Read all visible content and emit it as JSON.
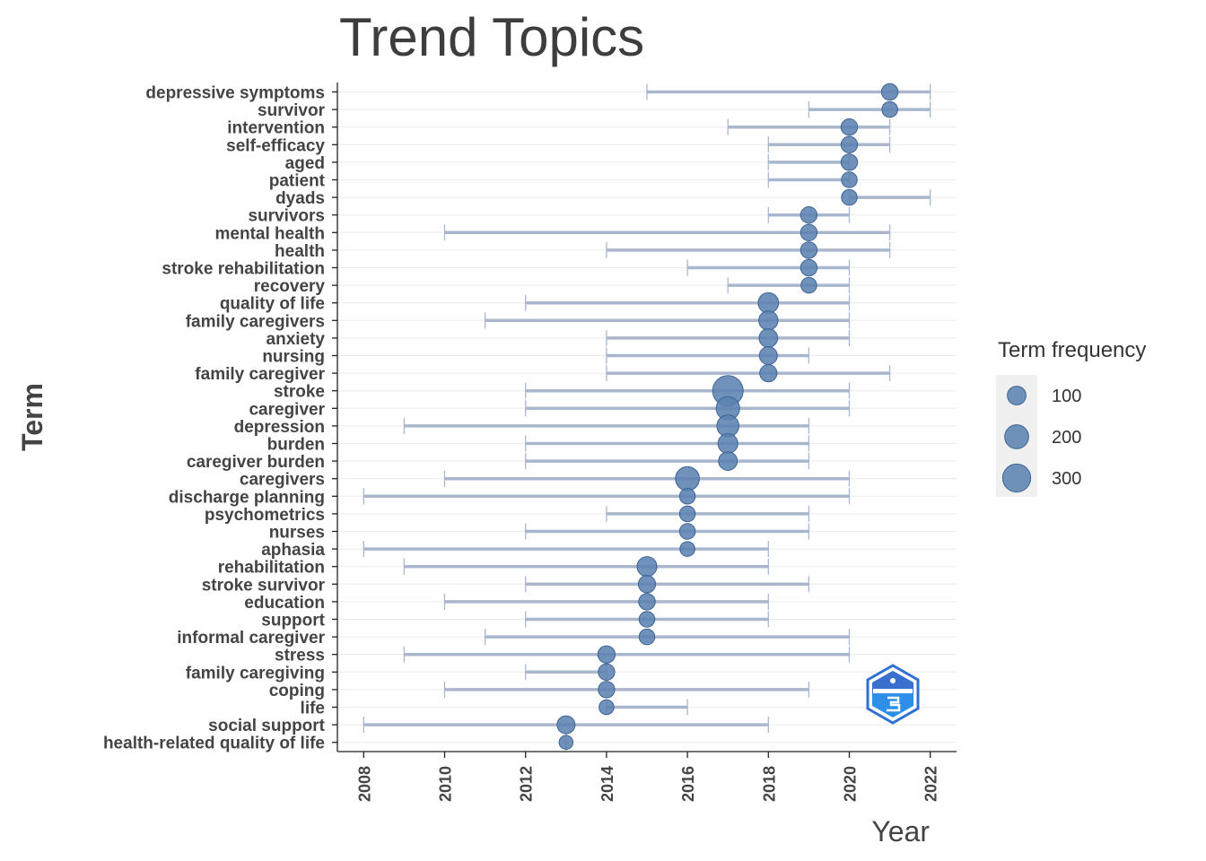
{
  "chart_data": {
    "type": "scatter",
    "title": "Trend Topics",
    "xlabel": "Year",
    "ylabel": "Term",
    "xlim": [
      2007.35,
      2022.65
    ],
    "x_ticks": [
      "2008",
      "2010",
      "2012",
      "2014",
      "2016",
      "2018",
      "2020",
      "2022"
    ],
    "grid": "horizontal",
    "legend": {
      "title": "Term frequency",
      "position": "right",
      "entries": [
        {
          "label": "100",
          "value": 100
        },
        {
          "label": "200",
          "value": 200
        },
        {
          "label": "300",
          "value": 300
        }
      ]
    },
    "colors": {
      "point": "#5b82b0",
      "point_edge": "#3f6494",
      "range_line": "#a9b7ce",
      "axis": "#222222",
      "grid": "#ebebeb"
    },
    "terms": [
      {
        "term": "depressive symptoms",
        "start": 2015,
        "median": 2021,
        "end": 2022,
        "freq": 70
      },
      {
        "term": "survivor",
        "start": 2019,
        "median": 2021,
        "end": 2022,
        "freq": 60
      },
      {
        "term": "intervention",
        "start": 2017,
        "median": 2020,
        "end": 2021,
        "freq": 70
      },
      {
        "term": "self-efficacy",
        "start": 2018,
        "median": 2020,
        "end": 2021,
        "freq": 70
      },
      {
        "term": "aged",
        "start": 2018,
        "median": 2020,
        "end": 2020,
        "freq": 70
      },
      {
        "term": "patient",
        "start": 2018,
        "median": 2020,
        "end": 2020,
        "freq": 60
      },
      {
        "term": "dyads",
        "start": 2020,
        "median": 2020,
        "end": 2022,
        "freq": 60
      },
      {
        "term": "survivors",
        "start": 2018,
        "median": 2019,
        "end": 2020,
        "freq": 70
      },
      {
        "term": "mental health",
        "start": 2010,
        "median": 2019,
        "end": 2021,
        "freq": 70
      },
      {
        "term": "health",
        "start": 2014,
        "median": 2019,
        "end": 2021,
        "freq": 70
      },
      {
        "term": "stroke rehabilitation",
        "start": 2016,
        "median": 2019,
        "end": 2020,
        "freq": 70
      },
      {
        "term": "recovery",
        "start": 2017,
        "median": 2019,
        "end": 2020,
        "freq": 60
      },
      {
        "term": "quality of life",
        "start": 2012,
        "median": 2018,
        "end": 2020,
        "freq": 130
      },
      {
        "term": "family caregivers",
        "start": 2011,
        "median": 2018,
        "end": 2020,
        "freq": 110
      },
      {
        "term": "anxiety",
        "start": 2014,
        "median": 2018,
        "end": 2020,
        "freq": 100
      },
      {
        "term": "nursing",
        "start": 2014,
        "median": 2018,
        "end": 2019,
        "freq": 90
      },
      {
        "term": "family caregiver",
        "start": 2014,
        "median": 2018,
        "end": 2021,
        "freq": 80
      },
      {
        "term": "stroke",
        "start": 2012,
        "median": 2017,
        "end": 2020,
        "freq": 370
      },
      {
        "term": "caregiver",
        "start": 2012,
        "median": 2017,
        "end": 2020,
        "freq": 190
      },
      {
        "term": "depression",
        "start": 2009,
        "median": 2017,
        "end": 2019,
        "freq": 160
      },
      {
        "term": "burden",
        "start": 2012,
        "median": 2017,
        "end": 2019,
        "freq": 120
      },
      {
        "term": "caregiver burden",
        "start": 2012,
        "median": 2017,
        "end": 2019,
        "freq": 100
      },
      {
        "term": "caregivers",
        "start": 2010,
        "median": 2016,
        "end": 2020,
        "freq": 200
      },
      {
        "term": "discharge planning",
        "start": 2008,
        "median": 2016,
        "end": 2020,
        "freq": 60
      },
      {
        "term": "psychometrics",
        "start": 2014,
        "median": 2016,
        "end": 2019,
        "freq": 60
      },
      {
        "term": "nurses",
        "start": 2012,
        "median": 2016,
        "end": 2019,
        "freq": 60
      },
      {
        "term": "aphasia",
        "start": 2008,
        "median": 2016,
        "end": 2018,
        "freq": 50
      },
      {
        "term": "rehabilitation",
        "start": 2009,
        "median": 2015,
        "end": 2018,
        "freq": 120
      },
      {
        "term": "stroke survivor",
        "start": 2012,
        "median": 2015,
        "end": 2019,
        "freq": 80
      },
      {
        "term": "education",
        "start": 2010,
        "median": 2015,
        "end": 2018,
        "freq": 70
      },
      {
        "term": "support",
        "start": 2012,
        "median": 2015,
        "end": 2018,
        "freq": 60
      },
      {
        "term": "informal caregiver",
        "start": 2011,
        "median": 2015,
        "end": 2020,
        "freq": 60
      },
      {
        "term": "stress",
        "start": 2009,
        "median": 2014,
        "end": 2020,
        "freq": 80
      },
      {
        "term": "family caregiving",
        "start": 2012,
        "median": 2014,
        "end": 2014,
        "freq": 70
      },
      {
        "term": "coping",
        "start": 2010,
        "median": 2014,
        "end": 2019,
        "freq": 70
      },
      {
        "term": "life",
        "start": 2014,
        "median": 2014,
        "end": 2016,
        "freq": 50
      },
      {
        "term": "social support",
        "start": 2008,
        "median": 2013,
        "end": 2018,
        "freq": 90
      },
      {
        "term": "health-related quality of life",
        "start": 2013,
        "median": 2013,
        "end": 2013,
        "freq": 40
      }
    ]
  }
}
